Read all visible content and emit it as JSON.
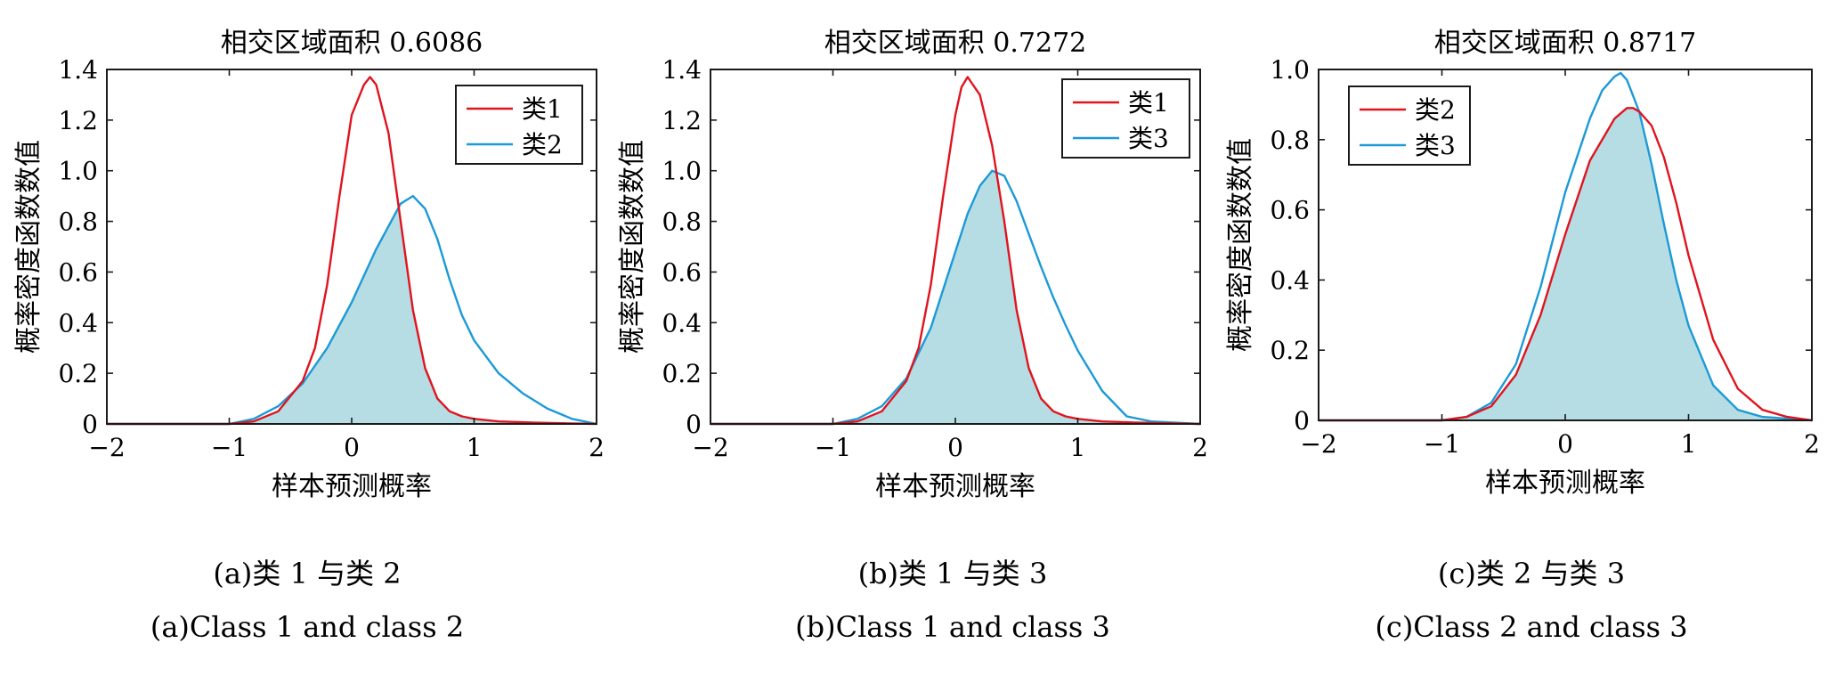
{
  "chart_data": [
    {
      "type": "area",
      "title": "相交区域面积 0.6086",
      "xlabel": "样本预测概率",
      "ylabel": "概率密度函数数值",
      "xlim": [
        -2,
        2
      ],
      "ylim": [
        0,
        1.4
      ],
      "xticks": [
        "−2",
        "−1",
        "0",
        "1",
        "2"
      ],
      "yticks": [
        "0",
        "0.2",
        "0.4",
        "0.6",
        "0.8",
        "1.0",
        "1.2",
        "1.4"
      ],
      "legend_position": "top-right",
      "series": [
        {
          "name": "类1",
          "color": "#e0141e",
          "x": [
            -2.0,
            -1.0,
            -0.8,
            -0.6,
            -0.4,
            -0.3,
            -0.2,
            -0.1,
            0.0,
            0.1,
            0.15,
            0.2,
            0.3,
            0.4,
            0.5,
            0.6,
            0.7,
            0.8,
            0.9,
            1.0,
            1.2,
            1.5,
            2.0
          ],
          "y": [
            0.0,
            0.0,
            0.01,
            0.05,
            0.17,
            0.3,
            0.55,
            0.9,
            1.22,
            1.34,
            1.37,
            1.34,
            1.15,
            0.8,
            0.45,
            0.22,
            0.1,
            0.05,
            0.03,
            0.02,
            0.01,
            0.005,
            0.0
          ]
        },
        {
          "name": "类2",
          "color": "#1c9ad6",
          "x": [
            -2.0,
            -1.0,
            -0.8,
            -0.6,
            -0.4,
            -0.2,
            0.0,
            0.2,
            0.4,
            0.5,
            0.6,
            0.7,
            0.8,
            0.9,
            1.0,
            1.2,
            1.4,
            1.6,
            1.8,
            2.0
          ],
          "y": [
            0.0,
            0.0,
            0.02,
            0.07,
            0.16,
            0.3,
            0.48,
            0.69,
            0.87,
            0.9,
            0.85,
            0.73,
            0.57,
            0.43,
            0.33,
            0.2,
            0.12,
            0.06,
            0.02,
            0.0
          ]
        }
      ],
      "overlap_fill": "#b5dde3",
      "caption_cn": "(a)类 1 与类 2",
      "caption_en": "(a)Class 1 and class 2"
    },
    {
      "type": "area",
      "title": "相交区域面积 0.7272",
      "xlabel": "样本预测概率",
      "ylabel": "概率密度函数数值",
      "xlim": [
        -2,
        2
      ],
      "ylim": [
        0,
        1.4
      ],
      "xticks": [
        "−2",
        "−1",
        "0",
        "1",
        "2"
      ],
      "yticks": [
        "0",
        "0.2",
        "0.4",
        "0.6",
        "0.8",
        "1.0",
        "1.2",
        "1.4"
      ],
      "legend_position": "top-right",
      "series": [
        {
          "name": "类1",
          "color": "#e0141e",
          "x": [
            -2.0,
            -1.0,
            -0.8,
            -0.6,
            -0.4,
            -0.3,
            -0.2,
            -0.1,
            0.0,
            0.05,
            0.1,
            0.2,
            0.3,
            0.4,
            0.5,
            0.6,
            0.7,
            0.8,
            0.9,
            1.0,
            1.2,
            1.5,
            2.0
          ],
          "y": [
            0.0,
            0.0,
            0.01,
            0.05,
            0.17,
            0.3,
            0.55,
            0.9,
            1.22,
            1.33,
            1.37,
            1.3,
            1.1,
            0.8,
            0.45,
            0.22,
            0.1,
            0.05,
            0.03,
            0.02,
            0.01,
            0.005,
            0.0
          ]
        },
        {
          "name": "类3",
          "color": "#1c9ad6",
          "x": [
            -2.0,
            -1.0,
            -0.8,
            -0.6,
            -0.4,
            -0.2,
            0.0,
            0.1,
            0.2,
            0.3,
            0.4,
            0.5,
            0.6,
            0.7,
            0.8,
            0.9,
            1.0,
            1.2,
            1.4,
            1.6,
            2.0
          ],
          "y": [
            0.0,
            0.0,
            0.02,
            0.07,
            0.18,
            0.38,
            0.68,
            0.83,
            0.94,
            1.0,
            0.98,
            0.88,
            0.75,
            0.62,
            0.5,
            0.39,
            0.29,
            0.13,
            0.03,
            0.01,
            0.0
          ]
        }
      ],
      "overlap_fill": "#b5dde3",
      "caption_cn": "(b)类 1 与类 3",
      "caption_en": "(b)Class 1 and class 3"
    },
    {
      "type": "area",
      "title": "相交区域面积 0.8717",
      "xlabel": "样本预测概率",
      "ylabel": "概率密度函数数值",
      "xlim": [
        -2,
        2
      ],
      "ylim": [
        0,
        1.0
      ],
      "xticks": [
        "−2",
        "−1",
        "0",
        "1",
        "2"
      ],
      "yticks": [
        "0",
        "0.2",
        "0.4",
        "0.6",
        "0.8",
        "1.0"
      ],
      "legend_position": "top-left",
      "series": [
        {
          "name": "类2",
          "color": "#e0141e",
          "x": [
            -2.0,
            -1.0,
            -0.8,
            -0.6,
            -0.4,
            -0.2,
            0.0,
            0.2,
            0.4,
            0.5,
            0.55,
            0.6,
            0.7,
            0.8,
            0.9,
            1.0,
            1.2,
            1.4,
            1.6,
            1.8,
            2.0
          ],
          "y": [
            0.0,
            0.0,
            0.01,
            0.04,
            0.13,
            0.3,
            0.53,
            0.74,
            0.86,
            0.89,
            0.89,
            0.88,
            0.84,
            0.75,
            0.62,
            0.47,
            0.23,
            0.09,
            0.03,
            0.01,
            0.0
          ]
        },
        {
          "name": "类3",
          "color": "#1c9ad6",
          "x": [
            -2.0,
            -1.0,
            -0.8,
            -0.6,
            -0.4,
            -0.2,
            0.0,
            0.2,
            0.3,
            0.4,
            0.45,
            0.5,
            0.6,
            0.7,
            0.8,
            0.9,
            1.0,
            1.2,
            1.4,
            1.6,
            2.0
          ],
          "y": [
            0.0,
            0.0,
            0.01,
            0.05,
            0.16,
            0.38,
            0.65,
            0.86,
            0.94,
            0.98,
            0.99,
            0.97,
            0.88,
            0.73,
            0.56,
            0.4,
            0.27,
            0.1,
            0.03,
            0.01,
            0.0
          ]
        }
      ],
      "overlap_fill": "#b5dde3",
      "caption_cn": "(c)类 2 与类 3",
      "caption_en": "(c)Class 2 and class 3"
    }
  ]
}
